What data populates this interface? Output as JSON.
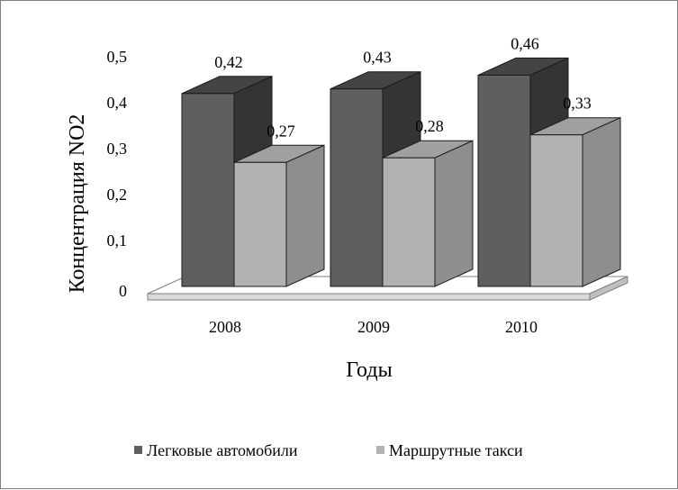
{
  "chart_data": {
    "type": "bar",
    "categories": [
      "2008",
      "2009",
      "2010"
    ],
    "series": [
      {
        "name": "Легковые автомобили",
        "values": [
          0.42,
          0.43,
          0.46
        ],
        "labels": [
          "0,42",
          "0,43",
          "0,46"
        ],
        "color": "#5f5f5f"
      },
      {
        "name": "Маршрутные такси",
        "values": [
          0.27,
          0.28,
          0.33
        ],
        "labels": [
          "0,27",
          "0,28",
          "0,33"
        ],
        "color": "#b2b2b2"
      }
    ],
    "xlabel": "Годы",
    "ylabel": "Концентрация NO2",
    "ylim": [
      0,
      0.5
    ],
    "yticks": [
      0,
      0.1,
      0.2,
      0.3,
      0.4,
      0.5
    ],
    "ytick_labels": [
      "0",
      "0,1",
      "0,2",
      "0,3",
      "0,4",
      "0,5"
    ],
    "grid": false,
    "legend_position": "bottom",
    "three_d": true
  }
}
